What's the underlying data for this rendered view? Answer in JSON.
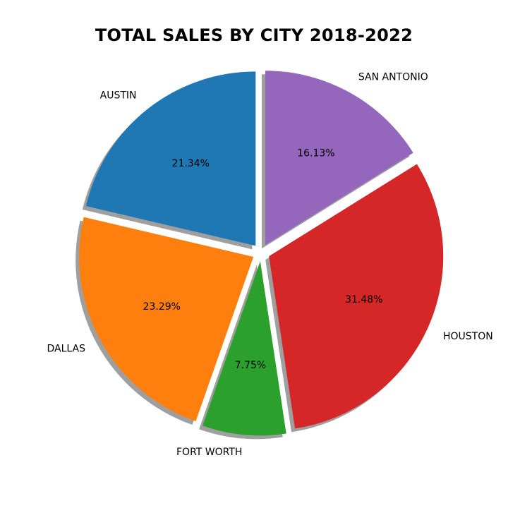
{
  "chart_data": {
    "type": "pie",
    "title": "TOTAL SALES BY CITY 2018-2022",
    "slices": [
      {
        "label": "AUSTIN",
        "value": 21.34,
        "pct_label": "21.34%",
        "color": "#1f77b4"
      },
      {
        "label": "DALLAS",
        "value": 23.29,
        "pct_label": "23.29%",
        "color": "#ff7f0e"
      },
      {
        "label": "FORT WORTH",
        "value": 7.75,
        "pct_label": "7.75%",
        "color": "#2ca02c"
      },
      {
        "label": "HOUSTON",
        "value": 31.48,
        "pct_label": "31.48%",
        "color": "#d62728"
      },
      {
        "label": "SAN ANTONIO",
        "value": 16.13,
        "pct_label": "16.13%",
        "color": "#9467bd"
      }
    ],
    "start_angle_deg": 90,
    "direction": "counterclockwise",
    "exploded": true,
    "shadow": true
  }
}
